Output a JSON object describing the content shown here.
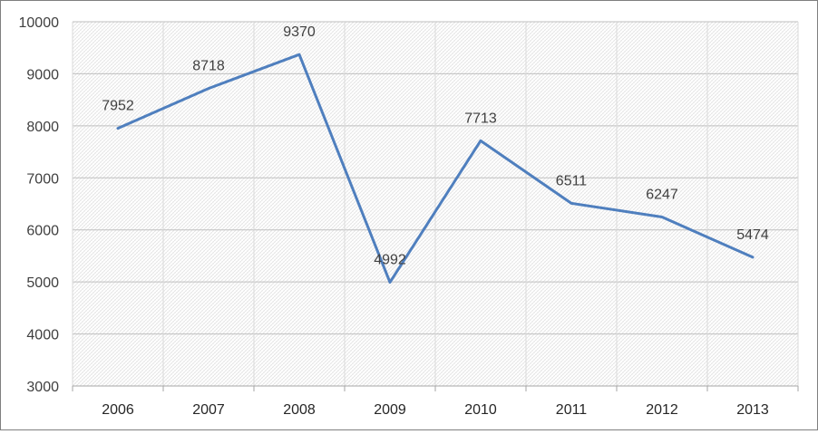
{
  "chart_data": {
    "type": "line",
    "title": "",
    "xlabel": "",
    "ylabel": "",
    "categories": [
      "2006",
      "2007",
      "2008",
      "2009",
      "2010",
      "2011",
      "2012",
      "2013"
    ],
    "series": [
      {
        "values": [
          7952,
          8718,
          9370,
          4992,
          7713,
          6511,
          6247,
          5474
        ],
        "color": "#4f7fbe"
      }
    ],
    "ylim": [
      3000,
      10000
    ],
    "yticks": [
      3000,
      4000,
      5000,
      6000,
      7000,
      8000,
      9000,
      10000
    ],
    "grid": true,
    "legend": "none",
    "data_labels": true
  }
}
